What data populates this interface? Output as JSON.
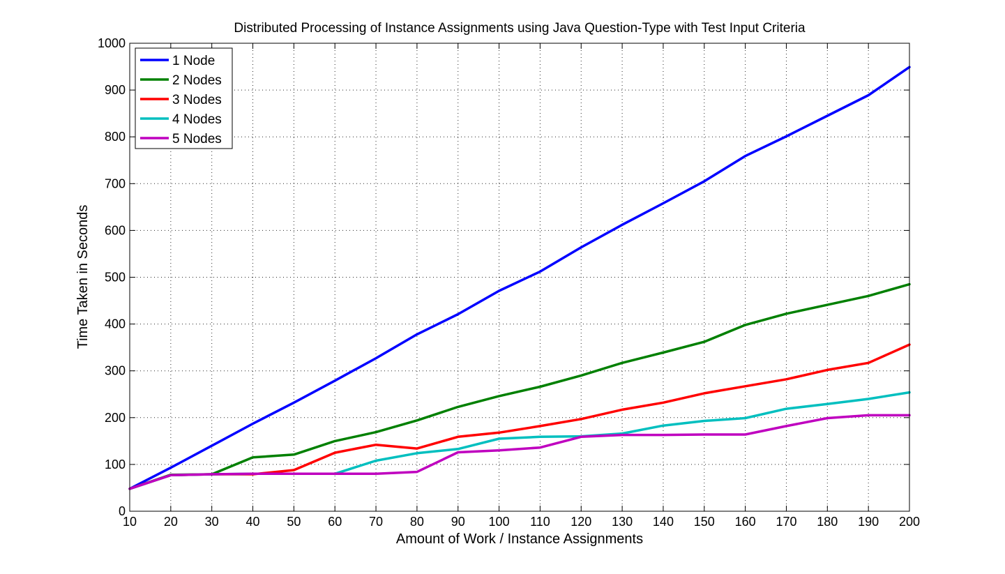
{
  "chart_data": {
    "type": "line",
    "title": "Distributed Processing of Instance Assignments using Java Question-Type with Test Input Criteria",
    "xlabel": "Amount of Work / Instance Assignments",
    "ylabel": "Time Taken in Seconds",
    "xlim": [
      10,
      200
    ],
    "ylim": [
      0,
      1000
    ],
    "xticks": [
      10,
      20,
      30,
      40,
      50,
      60,
      70,
      80,
      90,
      100,
      110,
      120,
      130,
      140,
      150,
      160,
      170,
      180,
      190,
      200
    ],
    "yticks": [
      0,
      100,
      200,
      300,
      400,
      500,
      600,
      700,
      800,
      900,
      1000
    ],
    "grid": true,
    "legend_position": "top-left",
    "x": [
      10,
      20,
      30,
      40,
      50,
      60,
      70,
      80,
      90,
      100,
      110,
      120,
      130,
      140,
      150,
      160,
      170,
      180,
      190,
      200
    ],
    "series": [
      {
        "name": "1 Node",
        "color": "#0000ff",
        "values": [
          48,
          93,
          140,
          187,
          232,
          279,
          327,
          378,
          421,
          471,
          512,
          564,
          612,
          658,
          705,
          759,
          801,
          845,
          889,
          949
        ]
      },
      {
        "name": "2 Nodes",
        "color": "#008000",
        "values": [
          48,
          78,
          79,
          115,
          121,
          150,
          169,
          194,
          223,
          246,
          266,
          290,
          317,
          339,
          362,
          398,
          422,
          441,
          460,
          485
        ]
      },
      {
        "name": "3 Nodes",
        "color": "#ff0000",
        "values": [
          48,
          77,
          79,
          79,
          88,
          125,
          142,
          134,
          159,
          168,
          182,
          197,
          217,
          232,
          252,
          267,
          282,
          302,
          317,
          356
        ]
      },
      {
        "name": "4 Nodes",
        "color": "#00bfbf",
        "values": [
          48,
          77,
          79,
          80,
          80,
          80,
          108,
          124,
          133,
          155,
          159,
          160,
          166,
          183,
          193,
          199,
          219,
          229,
          240,
          254
        ]
      },
      {
        "name": "5 Nodes",
        "color": "#bf00bf",
        "values": [
          48,
          77,
          79,
          80,
          80,
          80,
          80,
          84,
          126,
          130,
          136,
          159,
          163,
          163,
          164,
          164,
          182,
          199,
          205,
          205
        ]
      }
    ]
  }
}
